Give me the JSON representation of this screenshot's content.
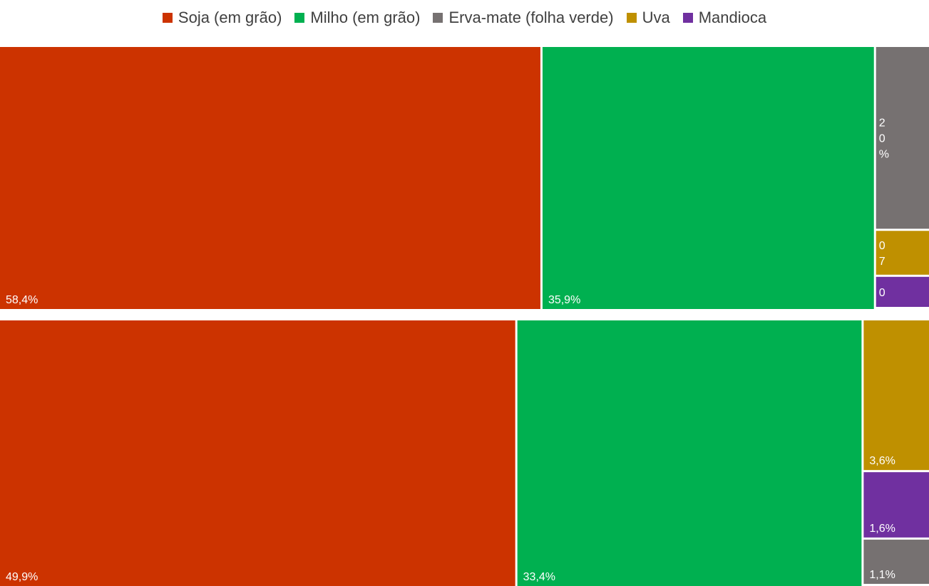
{
  "chart_data": [
    {
      "type": "treemap",
      "series": [
        {
          "name": "Soja (em grão)",
          "value": 58.4,
          "label": "58,4%",
          "color": "#CC3300"
        },
        {
          "name": "Milho (em grão)",
          "value": 35.9,
          "label": "35,9%",
          "color": "#00B050"
        },
        {
          "name": "Erva-mate (folha verde)",
          "value": 4.0,
          "label_lines": [
            "2",
            "0",
            "%"
          ],
          "color": "#767171"
        },
        {
          "name": "Uva",
          "value": 1.0,
          "label_lines": [
            "0",
            "7"
          ],
          "color": "#BF9000"
        },
        {
          "name": "Mandioca",
          "value": 0.7,
          "label_lines": [
            "0"
          ],
          "color": "#7030A0"
        }
      ]
    },
    {
      "type": "treemap",
      "series": [
        {
          "name": "Soja (em grão)",
          "value": 49.9,
          "label": "49,9%",
          "color": "#CC3300"
        },
        {
          "name": "Milho (em grão)",
          "value": 33.4,
          "label": "33,4%",
          "color": "#00B050"
        },
        {
          "name": "Uva",
          "value": 3.6,
          "label": "3,6%",
          "color": "#BF9000"
        },
        {
          "name": "Mandioca",
          "value": 1.6,
          "label": "1,6%",
          "color": "#7030A0"
        },
        {
          "name": "Erva-mate (folha verde)",
          "value": 1.1,
          "label": "1,1%",
          "color": "#767171"
        }
      ]
    }
  ],
  "legend": [
    {
      "label": "Soja (em grão)",
      "color": "#CC3300"
    },
    {
      "label": "Milho (em grão)",
      "color": "#00B050"
    },
    {
      "label": "Erva-mate (folha verde)",
      "color": "#767171"
    },
    {
      "label": "Uva",
      "color": "#BF9000"
    },
    {
      "label": "Mandioca",
      "color": "#7030A0"
    }
  ]
}
